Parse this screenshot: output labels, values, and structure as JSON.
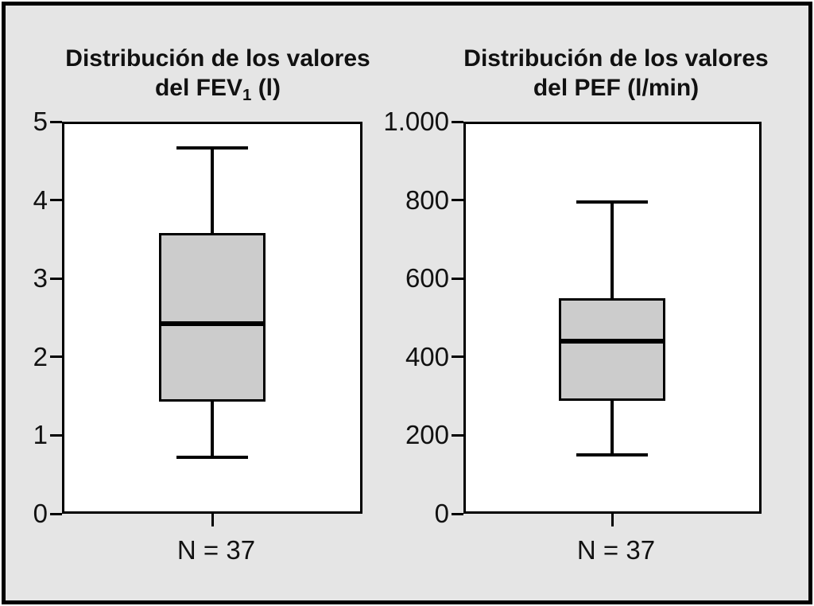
{
  "figure": {
    "panels": [
      {
        "title_line1": "Distribución de los valores",
        "title_line2_pre": "del FEV",
        "title_line2_sub": "1",
        "title_line2_post": " (l)",
        "n_label": "N = 37"
      },
      {
        "title_line1": "Distribución de los valores",
        "title_line2_pre": "del PEF (l/min)",
        "title_line2_sub": "",
        "title_line2_post": "",
        "n_label": "N = 37"
      }
    ]
  },
  "chart_data": [
    {
      "type": "boxplot",
      "title": "Distribución de los valores del FEV1 (l)",
      "ylabel": "FEV1 (l)",
      "ylim": [
        0,
        5
      ],
      "yticks": [
        {
          "value": 5,
          "label": "5"
        },
        {
          "value": 4,
          "label": "4"
        },
        {
          "value": 3,
          "label": "3"
        },
        {
          "value": 2,
          "label": "2"
        },
        {
          "value": 1,
          "label": "1"
        },
        {
          "value": 0,
          "label": "0"
        }
      ],
      "n": 37,
      "box": {
        "min": 0.72,
        "q1": 1.43,
        "median": 2.42,
        "q3": 3.58,
        "max": 4.67
      },
      "grid": false,
      "legend": false
    },
    {
      "type": "boxplot",
      "title": "Distribución de los valores del PEF (l/min)",
      "ylabel": "PEF (l/min)",
      "ylim": [
        0,
        1000
      ],
      "yticks": [
        {
          "value": 1000,
          "label": "1.000"
        },
        {
          "value": 800,
          "label": "800"
        },
        {
          "value": 600,
          "label": "600"
        },
        {
          "value": 400,
          "label": "400"
        },
        {
          "value": 200,
          "label": "200"
        },
        {
          "value": 0,
          "label": "0"
        }
      ],
      "n": 37,
      "box": {
        "min": 150,
        "q1": 288,
        "median": 440,
        "q3": 550,
        "max": 795
      },
      "grid": false,
      "legend": false
    }
  ],
  "colors": {
    "background": "#e5e5e5",
    "plot_background": "#ffffff",
    "box_fill": "#cccccc",
    "line": "#000000",
    "text": "#111111"
  }
}
